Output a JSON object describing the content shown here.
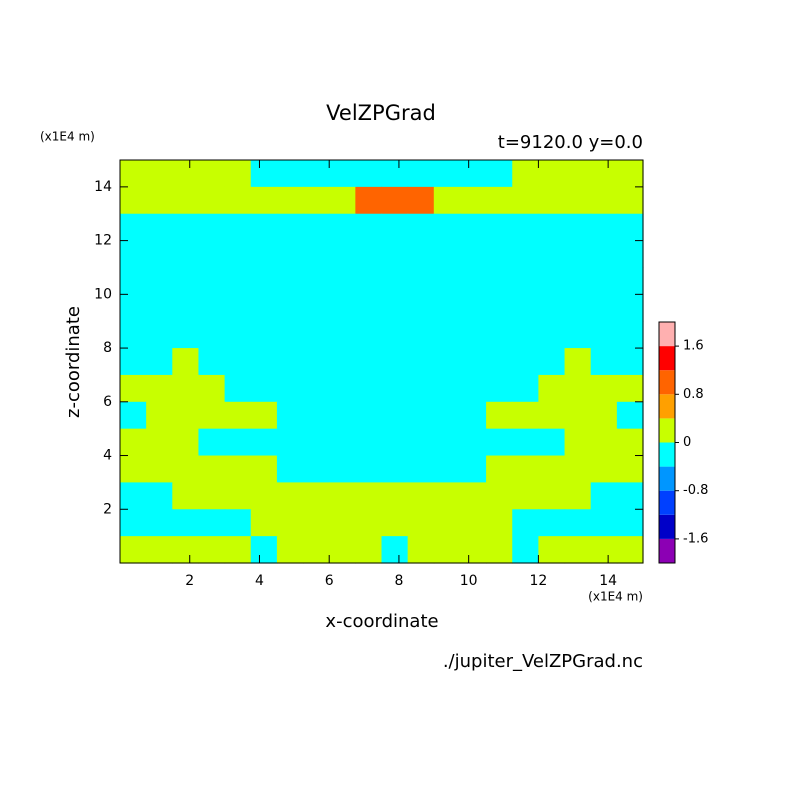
{
  "chart_data": {
    "type": "contour",
    "title": "VelZPGrad",
    "subtitle": "t=9120.0 y=0.0",
    "x_label": "x-coordinate",
    "y_label": "z-coordinate",
    "x_unit": "(x1E4 m)",
    "y_unit": "(x1E4 m)",
    "footnote": "./jupiter_VelZPGrad.nc",
    "xlim": [
      0,
      15
    ],
    "ylim": [
      0,
      15
    ],
    "xticks": [
      2,
      4,
      6,
      8,
      10,
      12,
      14
    ],
    "yticks": [
      2,
      4,
      6,
      8,
      10,
      12,
      14
    ],
    "grid_rows_top_first": [
      [
        0.2,
        0.2,
        0.2,
        0.2,
        0.2,
        -0.2,
        -0.2,
        -0.2,
        -0.2,
        -0.2,
        -0.2,
        -0.2,
        -0.2,
        -0.2,
        -0.2,
        0.2,
        0.2,
        0.2,
        0.2,
        0.2
      ],
      [
        0.2,
        0.2,
        0.2,
        0.2,
        0.2,
        0.2,
        0.2,
        0.2,
        0.2,
        1.0,
        1.0,
        1.0,
        0.2,
        0.2,
        0.2,
        0.2,
        0.2,
        0.2,
        0.2,
        0.2
      ],
      [
        -0.2,
        -0.2,
        -0.2,
        -0.2,
        -0.2,
        -0.2,
        -0.2,
        -0.2,
        -0.2,
        -0.2,
        -0.2,
        -0.2,
        -0.2,
        -0.2,
        -0.2,
        -0.2,
        -0.2,
        -0.2,
        -0.2,
        -0.2
      ],
      [
        -0.2,
        -0.2,
        -0.2,
        -0.2,
        -0.2,
        -0.2,
        -0.2,
        -0.2,
        -0.2,
        -0.2,
        -0.2,
        -0.2,
        -0.2,
        -0.2,
        -0.2,
        -0.2,
        -0.2,
        -0.2,
        -0.2,
        -0.2
      ],
      [
        -0.2,
        -0.2,
        -0.2,
        -0.2,
        -0.2,
        -0.2,
        -0.2,
        -0.2,
        -0.2,
        -0.2,
        -0.2,
        -0.2,
        -0.2,
        -0.2,
        -0.2,
        -0.2,
        -0.2,
        -0.2,
        -0.2,
        -0.2
      ],
      [
        -0.2,
        -0.2,
        -0.2,
        -0.2,
        -0.2,
        -0.2,
        -0.2,
        -0.2,
        -0.2,
        -0.2,
        -0.2,
        -0.2,
        -0.2,
        -0.2,
        -0.2,
        -0.2,
        -0.2,
        -0.2,
        -0.2,
        -0.2
      ],
      [
        -0.2,
        -0.2,
        -0.2,
        -0.2,
        -0.2,
        -0.2,
        -0.2,
        -0.2,
        -0.2,
        -0.2,
        -0.2,
        -0.2,
        -0.2,
        -0.2,
        -0.2,
        -0.2,
        -0.2,
        -0.2,
        -0.2,
        -0.2
      ],
      [
        -0.2,
        -0.2,
        0.2,
        -0.2,
        -0.2,
        -0.2,
        -0.2,
        -0.2,
        -0.2,
        -0.2,
        -0.2,
        -0.2,
        -0.2,
        -0.2,
        -0.2,
        -0.2,
        -0.2,
        0.2,
        -0.2,
        -0.2
      ],
      [
        0.2,
        0.2,
        0.2,
        0.2,
        -0.2,
        -0.2,
        -0.2,
        -0.2,
        -0.2,
        -0.2,
        -0.2,
        -0.2,
        -0.2,
        -0.2,
        -0.2,
        -0.2,
        0.2,
        0.2,
        0.2,
        0.2
      ],
      [
        -0.2,
        0.2,
        0.2,
        0.2,
        0.2,
        0.2,
        -0.2,
        -0.2,
        -0.2,
        -0.2,
        -0.2,
        -0.2,
        -0.2,
        -0.2,
        0.2,
        0.2,
        0.2,
        0.2,
        0.2,
        -0.2
      ],
      [
        0.2,
        0.2,
        0.2,
        -0.2,
        -0.2,
        -0.2,
        -0.2,
        -0.2,
        -0.2,
        -0.2,
        -0.2,
        -0.2,
        -0.2,
        -0.2,
        -0.2,
        -0.2,
        -0.2,
        0.2,
        0.2,
        0.2
      ],
      [
        0.2,
        0.2,
        0.2,
        0.2,
        0.2,
        0.2,
        -0.2,
        -0.2,
        -0.2,
        -0.2,
        -0.2,
        -0.2,
        -0.2,
        -0.2,
        0.2,
        0.2,
        0.2,
        0.2,
        0.2,
        0.2
      ],
      [
        -0.2,
        -0.2,
        0.2,
        0.2,
        0.2,
        0.2,
        0.2,
        0.2,
        0.2,
        0.2,
        0.2,
        0.2,
        0.2,
        0.2,
        0.2,
        0.2,
        0.2,
        0.2,
        -0.2,
        -0.2
      ],
      [
        -0.2,
        -0.2,
        -0.2,
        -0.2,
        -0.2,
        0.2,
        0.2,
        0.2,
        0.2,
        0.2,
        0.2,
        0.2,
        0.2,
        0.2,
        0.2,
        -0.2,
        -0.2,
        -0.2,
        -0.2,
        -0.2
      ],
      [
        0.2,
        0.2,
        0.2,
        0.2,
        0.2,
        -0.2,
        0.2,
        0.2,
        0.2,
        0.2,
        -0.2,
        0.2,
        0.2,
        0.2,
        0.2,
        -0.2,
        0.2,
        0.2,
        0.2,
        0.2
      ]
    ],
    "colorbar": {
      "levels": [
        -2.0,
        -1.6,
        -1.2,
        -0.8,
        -0.4,
        0,
        0.4,
        0.8,
        1.2,
        1.6,
        2.0
      ],
      "colors": [
        "#8c00b4",
        "#0000c8",
        "#0040ff",
        "#0096ff",
        "#00ffff",
        "#c8ff00",
        "#ffa000",
        "#ff6400",
        "#ff0000",
        "#ffb0b0"
      ],
      "ticks": [
        -1.6,
        -0.8,
        0,
        0.8,
        1.6
      ]
    }
  }
}
